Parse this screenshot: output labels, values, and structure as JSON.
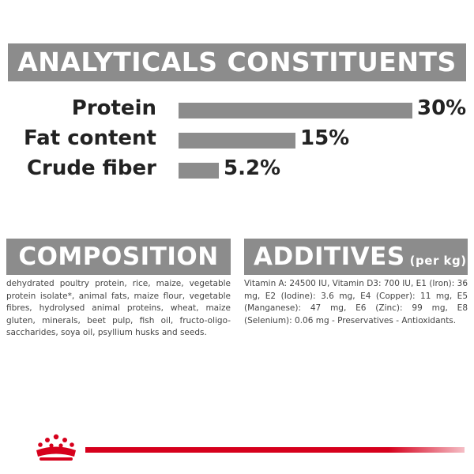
{
  "analytical": {
    "title": "ANALYTICALS CONSTITUENTS",
    "rows": [
      {
        "label": "Protein",
        "percent_text": "30%",
        "value": 30
      },
      {
        "label": "Fat content",
        "percent_text": "15%",
        "value": 15
      },
      {
        "label": "Crude fiber",
        "percent_text": "5.2%",
        "value": 5.2
      }
    ]
  },
  "composition": {
    "title": "COMPOSITION",
    "text": "dehydrated poultry protein, rice, maize, vegetable protein isolate*, animal fats, maize flour, vegetable fibres, hydrolysed animal proteins, wheat, maize gluten, minerals, beet pulp, fish oil, fructo-oligo-saccharides, soya oil, psyllium husks and seeds."
  },
  "additives": {
    "title": "ADDITIVES",
    "unit": "(per kg)",
    "text": "Vitamin A: 24500 IU, Vitamin D3: 700 IU, E1 (Iron): 36 mg, E2 (Iodine): 3.6 mg, E4 (Copper): 11 mg, E5 (Manganese): 47 mg, E6 (Zinc): 99 mg, E8 (Selenium): 0.06 mg - Preservatives - Antioxidants."
  },
  "colors": {
    "banner": "#8c8c8c",
    "bar": "#8c8c8c",
    "brand_red": "#d6001c"
  },
  "footer": {
    "logo_icon": "crown-logo-icon"
  }
}
